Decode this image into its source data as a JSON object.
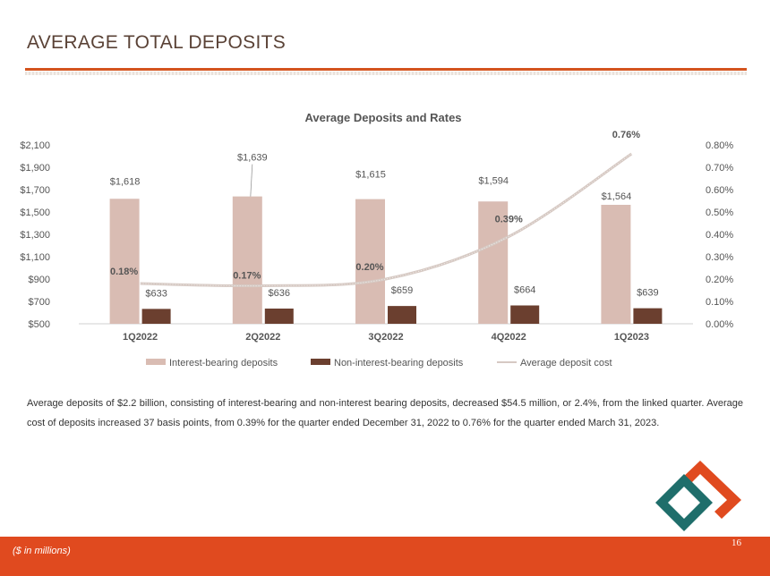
{
  "page": {
    "title": "AVERAGE TOTAL DEPOSITS",
    "description": "Average deposits of $2.2 billion, consisting of interest-bearing and non-interest bearing deposits, decreased $54.5 million, or 2.4%, from the linked quarter. Average cost of deposits increased 37 basis points, from 0.39% for the quarter ended December 31, 2022 to 0.76% for the quarter ended March 31, 2023.",
    "footnote": "($ in millions)",
    "page_number": "16",
    "logo_icon": "diamond-logo-icon"
  },
  "colors": {
    "accent": "#d4541e",
    "footer": "#e04a1f",
    "interest_bar": "#d9bcb3",
    "noninterest_bar": "#6b3f2f",
    "line": "#d6c9c3",
    "logo_orange": "#e04a1f",
    "logo_teal": "#1f6e6b"
  },
  "chart_data": {
    "type": "bar",
    "title": "Average Deposits and Rates",
    "categories": [
      "1Q2022",
      "2Q2022",
      "3Q2022",
      "4Q2022",
      "1Q2023"
    ],
    "series": [
      {
        "name": "Interest-bearing deposits",
        "type": "bar",
        "axis": "left",
        "values": [
          1618,
          1639,
          1615,
          1594,
          1564
        ],
        "labels": [
          "$1,618",
          "$1,639",
          "$1,615",
          "$1,594",
          "$1,564"
        ]
      },
      {
        "name": "Non-interest-bearing deposits",
        "type": "bar",
        "axis": "left",
        "values": [
          633,
          636,
          659,
          664,
          639
        ],
        "labels": [
          "$633",
          "$636",
          "$659",
          "$664",
          "$639"
        ]
      },
      {
        "name": "Average deposit cost",
        "type": "line",
        "axis": "right",
        "values": [
          0.18,
          0.17,
          0.2,
          0.39,
          0.76
        ],
        "labels": [
          "0.18%",
          "0.17%",
          "0.20%",
          "0.39%",
          "0.76%"
        ]
      }
    ],
    "y_left": {
      "min": 500,
      "max": 2100,
      "ticks": [
        500,
        700,
        900,
        1100,
        1300,
        1500,
        1700,
        1900,
        2100
      ],
      "tick_labels": [
        "$500",
        "$700",
        "$900",
        "$1,100",
        "$1,300",
        "$1,500",
        "$1,700",
        "$1,900",
        "$2,100"
      ]
    },
    "y_right": {
      "min": 0,
      "max": 0.8,
      "ticks": [
        0,
        0.1,
        0.2,
        0.3,
        0.4,
        0.5,
        0.6,
        0.7,
        0.8
      ],
      "tick_labels": [
        "0.00%",
        "0.10%",
        "0.20%",
        "0.30%",
        "0.40%",
        "0.50%",
        "0.60%",
        "0.70%",
        "0.80%"
      ]
    },
    "legend": [
      "Interest-bearing deposits",
      "Non-interest-bearing deposits",
      "Average deposit cost"
    ],
    "legend_position": "bottom",
    "grid": false
  }
}
